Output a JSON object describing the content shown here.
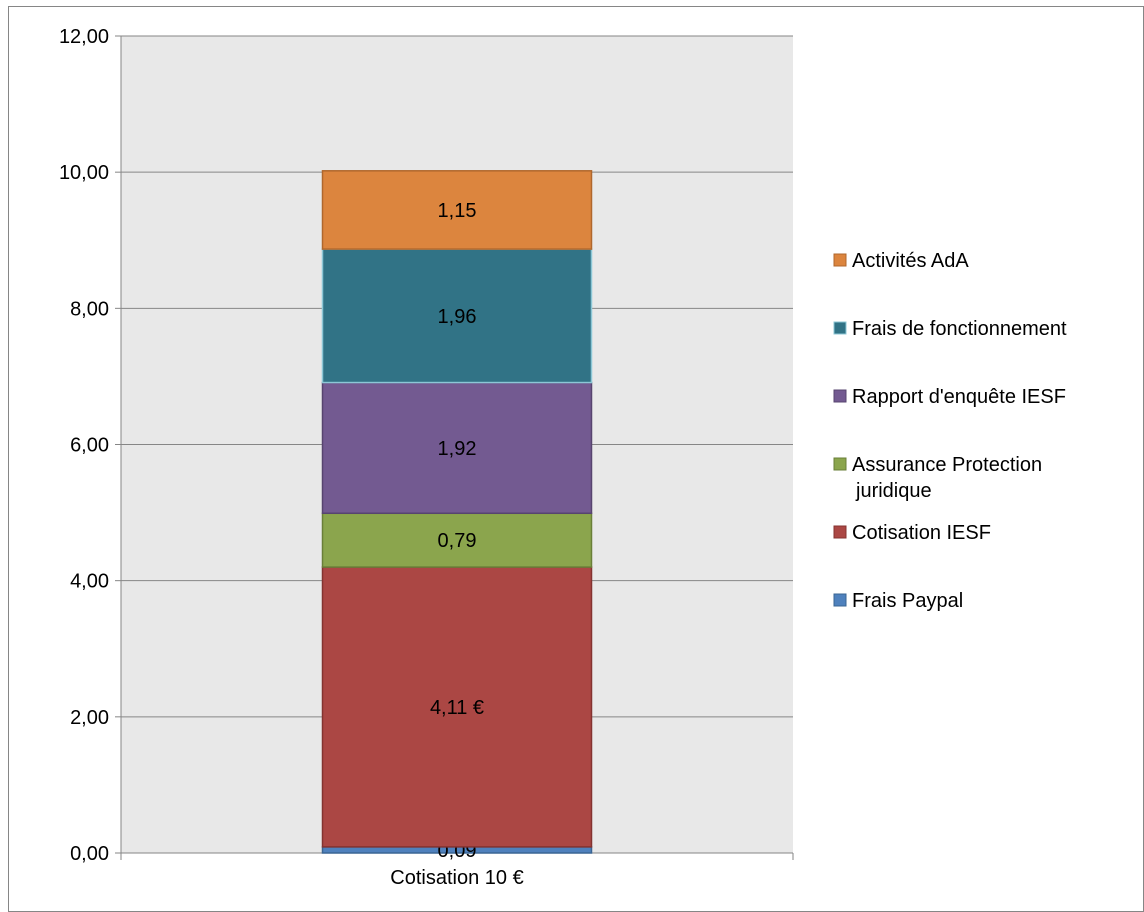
{
  "chart_data": {
    "type": "bar",
    "stacked": true,
    "categories": [
      "Cotisation 10 €"
    ],
    "ylim": [
      0,
      12
    ],
    "yticks": [
      0,
      2,
      4,
      6,
      8,
      10,
      12
    ],
    "ytick_labels": [
      "0,00",
      "2,00",
      "4,00",
      "6,00",
      "8,00",
      "10,00",
      "12,00"
    ],
    "grid": true,
    "plot_background": "#e8e8e8",
    "legend_position": "right",
    "series": [
      {
        "name": "Frais Paypal",
        "values": [
          0.09
        ],
        "label": "0,09",
        "color": "#4f81bd",
        "border": "#3a6593"
      },
      {
        "name": "Cotisation IESF",
        "values": [
          4.11
        ],
        "label": "4,11 €",
        "color": "#ab4744",
        "border": "#843330"
      },
      {
        "name": "Assurance Protection juridique",
        "values": [
          0.79
        ],
        "label": "0,79",
        "color": "#8ba54d",
        "border": "#6a7f38"
      },
      {
        "name": "Rapport d'enquête IESF",
        "values": [
          1.92
        ],
        "label": "1,92",
        "color": "#735a91",
        "border": "#57446f"
      },
      {
        "name": "Frais de fonctionnement",
        "values": [
          1.96
        ],
        "label": "1,96",
        "color": "#317386",
        "border": "#8cc7d6"
      },
      {
        "name": "Activités AdA",
        "values": [
          1.15
        ],
        "label": "1,15",
        "color": "#dc853e",
        "border": "#b0672c"
      }
    ],
    "legend_order": [
      5,
      4,
      3,
      2,
      1,
      0
    ],
    "legend_lines": {
      "2": [
        "Assurance Protection",
        "juridique"
      ]
    }
  }
}
